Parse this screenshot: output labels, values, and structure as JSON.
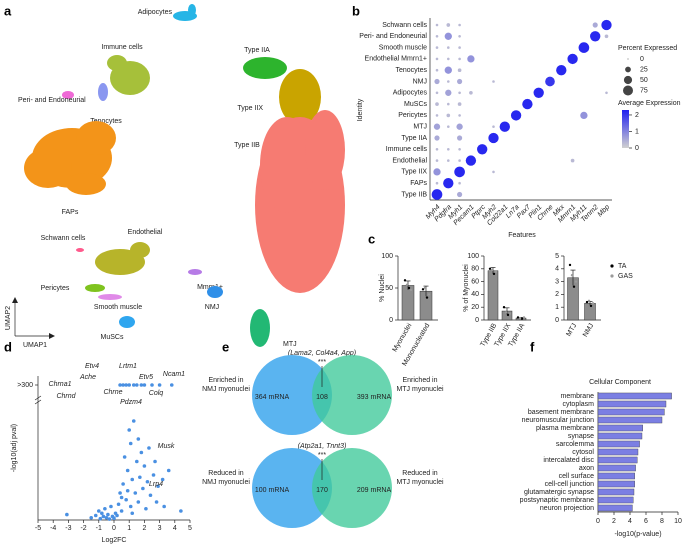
{
  "panels": [
    "a",
    "b",
    "c",
    "d",
    "e",
    "f"
  ],
  "umap": {
    "x_label": "UMAP1",
    "y_label": "UMAP2",
    "clusters": [
      {
        "name": "Adipocytes",
        "color": "#26b5e6"
      },
      {
        "name": "Immune cells",
        "color": "#a6c03a"
      },
      {
        "name": "Type IIA",
        "color": "#2db42d"
      },
      {
        "name": "Type IIX",
        "color": "#c9a400"
      },
      {
        "name": "Type IIB",
        "color": "#f67b72"
      },
      {
        "name": "Peri- and Endoneurial",
        "color": "#ef6ad6"
      },
      {
        "name": "Tenocytes",
        "color": "#8a97f0"
      },
      {
        "name": "FAPs",
        "color": "#f39419"
      },
      {
        "name": "Schwann cells",
        "color": "#ff5a8c"
      },
      {
        "name": "Endothelial",
        "color": "#b7b42a"
      },
      {
        "name": "Mmrn1+",
        "color": "#b67be6"
      },
      {
        "name": "Pericytes",
        "color": "#7fc31f"
      },
      {
        "name": "Smooth muscle",
        "color": "#e08ae8"
      },
      {
        "name": "MTJ",
        "color": "#22b874"
      },
      {
        "name": "NMJ",
        "color": "#2f8fe8"
      },
      {
        "name": "MuSCs",
        "color": "#2fa6ef"
      }
    ]
  },
  "venn": [
    {
      "note": "(Lama2, Col4a4, App)",
      "significance": "***",
      "left_label": [
        "Enriched in",
        "NMJ myonuclei"
      ],
      "right_label": [
        "Enriched in",
        "MTJ myonuclei"
      ],
      "left_count": "364 mRNA",
      "overlap_count": "108",
      "right_count": "393 mRNA",
      "left_color": "#5ab4f0",
      "right_color": "#3fc99a"
    },
    {
      "note": "(Atp2a1, Tnnt3)",
      "significance": "***",
      "left_label": [
        "Reduced in",
        "NMJ myonuclei"
      ],
      "right_label": [
        "Reduced in",
        "MTJ myonuclei"
      ],
      "left_count": "100 mRNA",
      "overlap_count": "170",
      "right_count": "209 mRNA",
      "left_color": "#5ab4f0",
      "right_color": "#3fc99a"
    }
  ],
  "chart_data": [
    {
      "type": "dotplot",
      "x_label": "Features",
      "y_label": "Identity",
      "features": [
        "Myh4",
        "Pdgfra",
        "Myh1",
        "Pecam1",
        "Ptprc",
        "Myh2",
        "Col22a1",
        "Ln7a",
        "Pax7",
        "Plin1",
        "Chrne",
        "Mkx",
        "Mmrn1",
        "Myh11",
        "Tenm2",
        "Mbp"
      ],
      "rows": [
        "Schwann cells",
        "Peri- and Endoneurial",
        "Smooth muscle",
        "Endothelial Mmrn1+",
        "Tenocytes",
        "NMJ",
        "Adipocytes",
        "MuSCs",
        "Pericytes",
        "MTJ",
        "Type IIA",
        "Immune cells",
        "Endothelial",
        "Type IIX",
        "FAPs",
        "Type IIB"
      ],
      "pct_expressed": [
        [
          5,
          10,
          5,
          0,
          0,
          0,
          0,
          0,
          0,
          0,
          0,
          0,
          0,
          0,
          20,
          80
        ],
        [
          5,
          40,
          5,
          0,
          0,
          0,
          0,
          0,
          0,
          0,
          0,
          0,
          0,
          0,
          80,
          10
        ],
        [
          5,
          5,
          5,
          0,
          0,
          0,
          0,
          0,
          0,
          0,
          0,
          0,
          0,
          85,
          0,
          0
        ],
        [
          5,
          5,
          5,
          40,
          0,
          0,
          0,
          0,
          0,
          0,
          0,
          0,
          80,
          0,
          0,
          0
        ],
        [
          5,
          40,
          10,
          0,
          0,
          0,
          0,
          0,
          0,
          0,
          0,
          80,
          0,
          0,
          0,
          0
        ],
        [
          20,
          5,
          20,
          0,
          0,
          5,
          0,
          0,
          0,
          0,
          70,
          0,
          0,
          0,
          0,
          0
        ],
        [
          5,
          30,
          5,
          10,
          0,
          0,
          0,
          0,
          0,
          80,
          0,
          0,
          0,
          0,
          0,
          5
        ],
        [
          10,
          5,
          10,
          0,
          0,
          0,
          0,
          0,
          80,
          0,
          0,
          0,
          0,
          0,
          0,
          0
        ],
        [
          5,
          10,
          5,
          0,
          0,
          0,
          0,
          80,
          0,
          0,
          0,
          0,
          0,
          40,
          0,
          0
        ],
        [
          30,
          5,
          30,
          0,
          0,
          5,
          80,
          0,
          0,
          0,
          0,
          0,
          0,
          0,
          0,
          0
        ],
        [
          20,
          0,
          20,
          0,
          0,
          80,
          0,
          0,
          0,
          0,
          0,
          0,
          0,
          0,
          0,
          0
        ],
        [
          5,
          5,
          5,
          0,
          80,
          0,
          0,
          0,
          0,
          0,
          0,
          0,
          0,
          0,
          0,
          0
        ],
        [
          5,
          5,
          5,
          80,
          0,
          0,
          0,
          0,
          0,
          0,
          0,
          0,
          10,
          0,
          0,
          0
        ],
        [
          40,
          0,
          85,
          0,
          0,
          5,
          0,
          0,
          0,
          0,
          0,
          0,
          0,
          0,
          0,
          0
        ],
        [
          5,
          80,
          5,
          0,
          0,
          0,
          0,
          0,
          0,
          0,
          0,
          0,
          0,
          0,
          0,
          0
        ],
        [
          85,
          0,
          20,
          0,
          0,
          0,
          0,
          0,
          0,
          0,
          0,
          0,
          0,
          0,
          0,
          0
        ]
      ],
      "avg_expression": [
        [
          0.3,
          0.3,
          0.3,
          0,
          0,
          0,
          0,
          0,
          0,
          0,
          0,
          0,
          0,
          0,
          0.5,
          2.2
        ],
        [
          0.3,
          0.8,
          0.3,
          0,
          0,
          0,
          0,
          0,
          0,
          0,
          0,
          0,
          0,
          0,
          2.2,
          0.3
        ],
        [
          0.3,
          0.3,
          0.3,
          0,
          0,
          0,
          0,
          0,
          0,
          0,
          0,
          0,
          0,
          2.2,
          0,
          0
        ],
        [
          0.3,
          0.3,
          0.3,
          0.8,
          0,
          0,
          0,
          0,
          0,
          0,
          0,
          0,
          2.2,
          0,
          0,
          0
        ],
        [
          0.3,
          0.8,
          0.3,
          0,
          0,
          0,
          0,
          0,
          0,
          0,
          0,
          2.2,
          0,
          0,
          0,
          0
        ],
        [
          0.5,
          0.3,
          0.5,
          0,
          0,
          0.3,
          0,
          0,
          0,
          0,
          2.0,
          0,
          0,
          0,
          0,
          0
        ],
        [
          0.3,
          0.6,
          0.3,
          0.3,
          0,
          0,
          0,
          0,
          0,
          2.2,
          0,
          0,
          0,
          0,
          0,
          0.3
        ],
        [
          0.3,
          0.3,
          0.3,
          0,
          0,
          0,
          0,
          0,
          2.2,
          0,
          0,
          0,
          0,
          0,
          0,
          0
        ],
        [
          0.3,
          0.3,
          0.3,
          0,
          0,
          0,
          0,
          2.2,
          0,
          0,
          0,
          0,
          0,
          0.8,
          0,
          0
        ],
        [
          0.6,
          0.3,
          0.6,
          0,
          0,
          0.3,
          2.2,
          0,
          0,
          0,
          0,
          0,
          0,
          0,
          0,
          0
        ],
        [
          0.5,
          0,
          0.5,
          0,
          0,
          2.2,
          0,
          0,
          0,
          0,
          0,
          0,
          0,
          0,
          0,
          0
        ],
        [
          0.3,
          0.3,
          0.3,
          0,
          2.2,
          0,
          0,
          0,
          0,
          0,
          0,
          0,
          0,
          0,
          0,
          0
        ],
        [
          0.3,
          0.3,
          0.3,
          2.2,
          0,
          0,
          0,
          0,
          0,
          0,
          0,
          0,
          0.3,
          0,
          0,
          0
        ],
        [
          0.8,
          0,
          2.2,
          0,
          0,
          0.3,
          0,
          0,
          0,
          0,
          0,
          0,
          0,
          0,
          0,
          0
        ],
        [
          0.3,
          2.2,
          0.3,
          0,
          0,
          0,
          0,
          0,
          0,
          0,
          0,
          0,
          0,
          0,
          0,
          0
        ],
        [
          2.2,
          0,
          0.5,
          0,
          0,
          0,
          0,
          0,
          0,
          0,
          0,
          0,
          0,
          0,
          0,
          0
        ]
      ],
      "size_legend_title": "Percent Expressed",
      "size_legend": [
        0,
        25,
        50,
        75
      ],
      "color_legend_title": "Average Expression",
      "color_lim": [
        0,
        2.3
      ],
      "color_ticks": [
        0,
        1,
        2
      ],
      "color_low": "#d0d0d0",
      "color_high": "#2020f0"
    },
    {
      "type": "bar",
      "y_label": "% Nuclei",
      "categories": [
        "Myonuclei",
        "Mononucleated"
      ],
      "values": [
        54,
        45
      ],
      "errors": [
        7,
        8
      ],
      "color": "#8c8c8c",
      "ylim": [
        0,
        100
      ],
      "yticks": [
        0,
        50,
        100
      ],
      "series": [
        {
          "name": "TA",
          "color": "#000000",
          "values": [
            [
              62,
              50
            ],
            [
              48,
              35
            ]
          ]
        },
        {
          "name": "GAS",
          "color": "#9a9a9a",
          "values": [
            [
              55,
              47
            ],
            [
              50,
              40
            ]
          ]
        }
      ]
    },
    {
      "type": "bar",
      "y_label": "% of Myonuclei",
      "categories": [
        "Type IIB",
        "Type IIX",
        "Type IIA"
      ],
      "values": [
        77,
        14,
        3
      ],
      "errors": [
        5,
        5,
        1
      ],
      "color": "#8c8c8c",
      "ylim": [
        0,
        100
      ],
      "yticks": [
        0,
        20,
        40,
        60,
        80,
        100
      ],
      "series": [
        {
          "name": "TA",
          "color": "#000000",
          "values": [
            [
              80,
              72
            ],
            [
              20,
              8
            ],
            [
              4,
              2
            ]
          ]
        },
        {
          "name": "GAS",
          "color": "#9a9a9a",
          "values": [
            [
              78,
              75
            ],
            [
              12,
              10
            ],
            [
              3,
              4
            ]
          ]
        }
      ]
    },
    {
      "type": "bar",
      "categories": [
        "MTJ",
        "NMJ"
      ],
      "values": [
        3.3,
        1.3
      ],
      "errors": [
        0.6,
        0.15
      ],
      "color": "#8c8c8c",
      "ylim": [
        0,
        5
      ],
      "yticks": [
        0,
        1,
        2,
        3,
        4,
        5
      ],
      "legend": true,
      "series": [
        {
          "name": "TA",
          "color": "#000000",
          "values": [
            [
              4.3,
              2.6
            ],
            [
              1.4,
              1.1
            ]
          ]
        },
        {
          "name": "GAS",
          "color": "#9a9a9a",
          "values": [
            [
              3.5,
              3.0
            ],
            [
              1.5,
              1.3
            ]
          ]
        }
      ]
    },
    {
      "type": "scatter",
      "x_label": "Log2FC",
      "y_label": "-log10(adj pval)",
      "color": "#4a90e2",
      "xlim": [
        -5,
        5
      ],
      "xticks": [
        -5,
        -4,
        -3,
        -2,
        -1,
        0,
        1,
        2,
        3,
        4,
        5
      ],
      "ylim": [
        0,
        320
      ],
      "yticks": [
        {
          "value": 300,
          "label": ">300"
        }
      ],
      "x": [
        -3.1,
        -1.5,
        -1.2,
        -1,
        -0.9,
        -0.8,
        -0.7,
        -0.6,
        -0.5,
        -0.4,
        -0.3,
        -0.2,
        -0.1,
        0,
        0.2,
        0.3,
        0.4,
        0.4,
        0.5,
        0.6,
        0.6,
        0.7,
        0.8,
        0.8,
        0.9,
        1,
        1,
        1.1,
        1.1,
        1.2,
        1.3,
        1.3,
        1.4,
        1.5,
        1.5,
        1.6,
        1.7,
        1.8,
        1.8,
        1.9,
        2,
        2,
        2.1,
        2.2,
        2.3,
        2.4,
        2.5,
        2.6,
        2.8,
        2.9,
        3,
        3.2,
        3.3,
        3.6,
        3.8,
        4.4,
        0.1,
        0.5,
        0.9,
        1.2,
        1.6,
        2.7
      ],
      "y": [
        12,
        5,
        10,
        20,
        3,
        15,
        8,
        25,
        5,
        12,
        2,
        30,
        8,
        4,
        10,
        35,
        60,
        300,
        20,
        80,
        300,
        140,
        45,
        300,
        110,
        200,
        300,
        30,
        170,
        90,
        220,
        300,
        60,
        130,
        300,
        40,
        95,
        150,
        300,
        70,
        120,
        300,
        25,
        85,
        160,
        55,
        300,
        100,
        40,
        75,
        300,
        90,
        30,
        110,
        300,
        20,
        15,
        50,
        65,
        15,
        180,
        130
      ],
      "annotations": [
        {
          "text": "Chrna1",
          "color": "#000000"
        },
        {
          "text": "Ache",
          "color": "#000000"
        },
        {
          "text": "Etv4",
          "color": "#9b30d9"
        },
        {
          "text": "Lrtm1",
          "color": "#9b30d9"
        },
        {
          "text": "Etv5",
          "color": "#000000"
        },
        {
          "text": "Ncam1",
          "color": "#000000"
        },
        {
          "text": "Chrnd",
          "color": "#000000"
        },
        {
          "text": "Chrne",
          "color": "#000000"
        },
        {
          "text": "Colq",
          "color": "#000000"
        },
        {
          "text": "Pdzm4",
          "color": "#9b30d9"
        },
        {
          "text": "Musk",
          "color": "#000000"
        },
        {
          "text": "Lrp4",
          "color": "#000000"
        }
      ]
    },
    {
      "type": "barh",
      "title": "Cellular Component",
      "x_label": "-log10(p-value)",
      "color": "#7b7fe3",
      "xlim": [
        0,
        10
      ],
      "xticks": [
        0,
        2,
        4,
        6,
        8,
        10
      ],
      "categories": [
        "membrane",
        "cytoplasm",
        "basement membrane",
        "neuromuscular junction",
        "plasma membrane",
        "synapse",
        "sarcolemma",
        "cytosol",
        "intercalated disc",
        "axon",
        "cell surface",
        "cell-cell junction",
        "glutamatergic synapse",
        "postsynaptic membrane",
        "neuron projection"
      ],
      "values": [
        9.2,
        8.5,
        8.3,
        8.0,
        5.6,
        5.5,
        5.2,
        5.0,
        4.9,
        4.7,
        4.6,
        4.6,
        4.5,
        4.4,
        4.3
      ]
    }
  ]
}
